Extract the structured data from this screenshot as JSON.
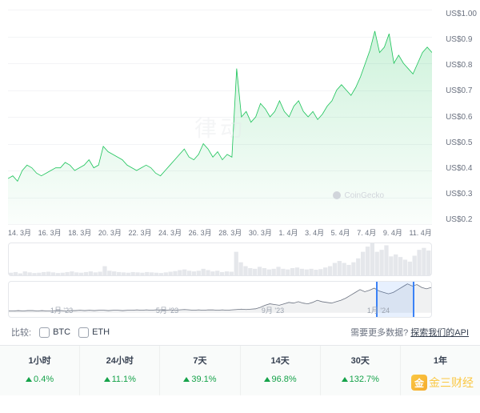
{
  "main_chart": {
    "type": "area-line",
    "line_color": "#22c55e",
    "fill_color_top": "rgba(34,197,94,0.22)",
    "fill_color_bottom": "rgba(34,197,94,0.02)",
    "line_width": 1.4,
    "ylim": [
      0.2,
      1.0
    ],
    "yticks": [
      "US$1.00",
      "US$0.9",
      "US$0.8",
      "US$0.7",
      "US$0.6",
      "US$0.5",
      "US$0.4",
      "US$0.3",
      "US$0.2"
    ],
    "ytick_color": "#6b7280",
    "ytick_fontsize": 10,
    "grid_color": "#f3f4f6",
    "background_color": "#ffffff",
    "xticks": [
      "14. 3月",
      "16. 3月",
      "18. 3月",
      "20. 3月",
      "22. 3月",
      "24. 3月",
      "26. 3月",
      "28. 3月",
      "30. 3月",
      "1. 4月",
      "3. 4月",
      "5. 4月",
      "7. 4月",
      "9. 4月",
      "11. 4月"
    ],
    "x_values_index": [
      0,
      1,
      2,
      3,
      4,
      5,
      6,
      7,
      8,
      9,
      10,
      11,
      12,
      13,
      14,
      15,
      16,
      17,
      18,
      19,
      20,
      21,
      22,
      23,
      24,
      25,
      26,
      27,
      28,
      29,
      30,
      31,
      32,
      33,
      34,
      35,
      36,
      37,
      38,
      39,
      40,
      41,
      42,
      43,
      44,
      45,
      46,
      47,
      48,
      49,
      50,
      51,
      52,
      53,
      54,
      55,
      56,
      57,
      58,
      59,
      60,
      61,
      62,
      63,
      64,
      65,
      66,
      67,
      68,
      69,
      70,
      71,
      72,
      73,
      74,
      75,
      76,
      77,
      78,
      79,
      80,
      81,
      82,
      83,
      84,
      85,
      86,
      87,
      88,
      89
    ],
    "y_values": [
      0.37,
      0.38,
      0.36,
      0.4,
      0.42,
      0.41,
      0.39,
      0.38,
      0.39,
      0.4,
      0.41,
      0.41,
      0.43,
      0.42,
      0.4,
      0.41,
      0.42,
      0.44,
      0.41,
      0.42,
      0.49,
      0.47,
      0.46,
      0.45,
      0.44,
      0.42,
      0.41,
      0.4,
      0.41,
      0.42,
      0.41,
      0.39,
      0.38,
      0.4,
      0.42,
      0.44,
      0.46,
      0.48,
      0.45,
      0.44,
      0.46,
      0.5,
      0.48,
      0.45,
      0.47,
      0.44,
      0.46,
      0.45,
      0.78,
      0.6,
      0.62,
      0.58,
      0.6,
      0.65,
      0.63,
      0.6,
      0.62,
      0.66,
      0.62,
      0.6,
      0.64,
      0.66,
      0.62,
      0.6,
      0.62,
      0.59,
      0.61,
      0.64,
      0.66,
      0.7,
      0.72,
      0.7,
      0.68,
      0.71,
      0.75,
      0.8,
      0.85,
      0.92,
      0.84,
      0.86,
      0.91,
      0.8,
      0.83,
      0.8,
      0.78,
      0.76,
      0.8,
      0.84,
      0.86,
      0.84
    ],
    "watermark_brand": "CoinGecko",
    "watermark_center": "律动"
  },
  "volume_panel": {
    "bar_color": "#e5e7eb",
    "background": "#ffffff",
    "values": [
      8,
      10,
      6,
      12,
      9,
      7,
      8,
      10,
      11,
      9,
      7,
      8,
      10,
      12,
      9,
      8,
      10,
      12,
      9,
      11,
      28,
      14,
      12,
      10,
      9,
      8,
      10,
      9,
      8,
      10,
      9,
      8,
      7,
      9,
      11,
      13,
      16,
      18,
      14,
      12,
      14,
      20,
      16,
      12,
      14,
      10,
      12,
      11,
      72,
      40,
      28,
      22,
      20,
      26,
      22,
      18,
      20,
      26,
      20,
      18,
      22,
      24,
      20,
      18,
      20,
      17,
      19,
      24,
      28,
      38,
      44,
      38,
      32,
      40,
      52,
      72,
      88,
      98,
      72,
      78,
      92,
      58,
      64,
      56,
      48,
      42,
      60,
      78,
      84,
      76
    ]
  },
  "range_panel": {
    "line_color": "#6b7280",
    "fill_color": "rgba(107,114,128,0.1)",
    "selection_color": "rgba(59,130,246,0.12)",
    "selection_border": "#3b82f6",
    "selection_start_pct": 87,
    "selection_end_pct": 96,
    "xticks": [
      "1月 '23",
      "5月 '23",
      "9月 '23",
      "1月 '24"
    ],
    "y_values": [
      4,
      4,
      5,
      4,
      5,
      5,
      4,
      5,
      4,
      4,
      5,
      5,
      4,
      5,
      5,
      6,
      5,
      6,
      5,
      6,
      6,
      5,
      6,
      6,
      5,
      6,
      6,
      7,
      6,
      7,
      6,
      7,
      7,
      6,
      7,
      6,
      7,
      8,
      7,
      6,
      7,
      6,
      7,
      7,
      6,
      7,
      6,
      7,
      8,
      9,
      8,
      9,
      10,
      14,
      20,
      24,
      22,
      20,
      24,
      28,
      26,
      30,
      26,
      24,
      28,
      34,
      30,
      28,
      26,
      30,
      34,
      40,
      48,
      56,
      64,
      58,
      62,
      68,
      60,
      56,
      52,
      56,
      64,
      72,
      80,
      74,
      78,
      70,
      66,
      70
    ]
  },
  "compare": {
    "label": "比较:",
    "options": [
      {
        "label": "BTC",
        "checked": false
      },
      {
        "label": "ETH",
        "checked": false
      }
    ],
    "api_prompt": "需要更多数据?",
    "api_link": "探索我们的API"
  },
  "stats": {
    "cells": [
      {
        "label": "1小时",
        "value": "0.4%",
        "direction": "up"
      },
      {
        "label": "24小时",
        "value": "11.1%",
        "direction": "up"
      },
      {
        "label": "7天",
        "value": "39.1%",
        "direction": "up"
      },
      {
        "label": "14天",
        "value": "96.8%",
        "direction": "up"
      },
      {
        "label": "30天",
        "value": "132.7%",
        "direction": "up"
      },
      {
        "label": "1年",
        "value": "",
        "direction": ""
      }
    ],
    "up_color": "#16a34a",
    "background": "#f9fbfa",
    "label_color": "#374151"
  },
  "logo_overlay": {
    "text": "金三财经"
  }
}
